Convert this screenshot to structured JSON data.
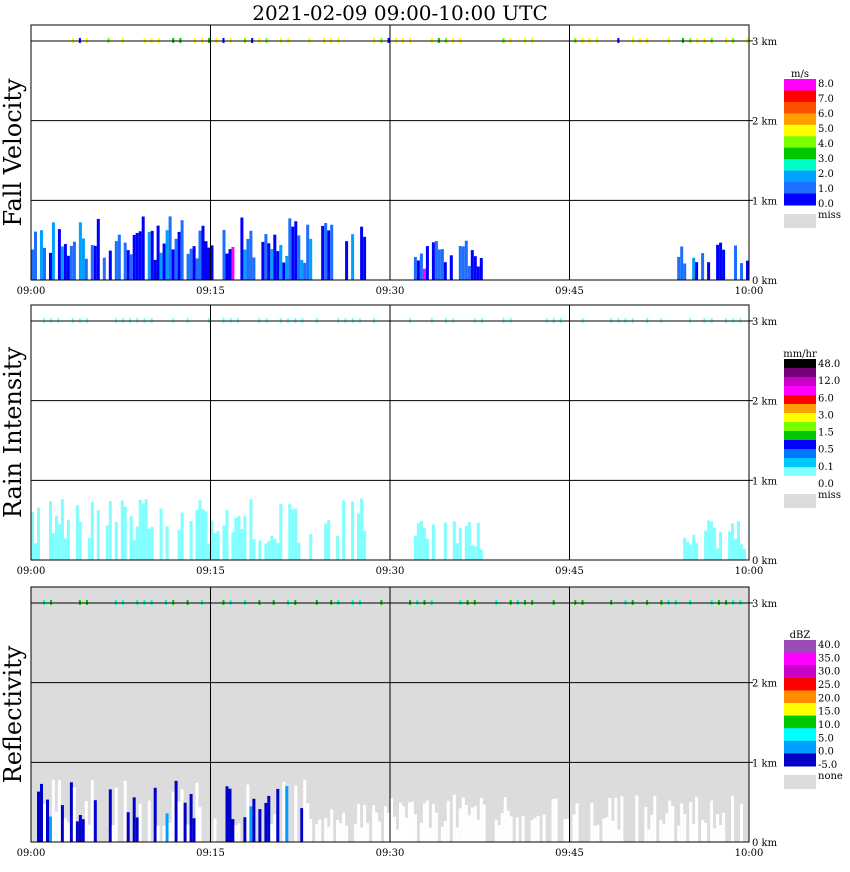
{
  "title": "2021-02-09   09:00-10:00 UTC",
  "x_ticks": [
    "09:00",
    "09:15",
    "09:30",
    "09:45",
    "10:00"
  ],
  "height_ticks": [
    "1 km",
    "2 km",
    "3 km"
  ],
  "bottom_height_tick": "0 km",
  "panels": [
    {
      "id": "fall-velocity",
      "ylabel": "Fall Velocity",
      "unit": "m/s",
      "background": "#ffffff",
      "colorbar": {
        "colors": [
          "#0000ff",
          "#1e6eff",
          "#00a0ff",
          "#00ffc8",
          "#00c800",
          "#78ff00",
          "#ffff00",
          "#ffa000",
          "#ff5000",
          "#ff0000",
          "#ff00ff"
        ],
        "labels": [
          "8.0",
          "7.0",
          "6.0",
          "5.0",
          "4.0",
          "3.0",
          "2.0",
          "1.0",
          "0.0"
        ],
        "miss_label": "miss",
        "miss_color": "#dcdcdc"
      }
    },
    {
      "id": "rain-intensity",
      "ylabel": "Rain Intensity",
      "unit": "mm/hr",
      "background": "#ffffff",
      "colorbar": {
        "colors": [
          "#ffffff",
          "#7fffff",
          "#00c8ff",
          "#0078ff",
          "#0000ff",
          "#00c800",
          "#78ff00",
          "#ffff00",
          "#ffa000",
          "#ff0000",
          "#ff00ff",
          "#c800c8",
          "#780078",
          "#000000"
        ],
        "labels": [
          "48.0",
          "12.0",
          "6.0",
          "3.0",
          "1.5",
          "0.5",
          "0.1",
          "0.0"
        ],
        "miss_label": "miss",
        "miss_color": "#dcdcdc"
      }
    },
    {
      "id": "reflectivity",
      "ylabel": "Reflectivity",
      "unit": "dBZ",
      "background": "#dcdcdc",
      "colorbar": {
        "colors": [
          "#0000c8",
          "#00a0ff",
          "#00ffff",
          "#00c800",
          "#ffff00",
          "#ff8c00",
          "#ff0000",
          "#c800c8",
          "#ff00ff",
          "#9b4bb4"
        ],
        "labels": [
          "40.0",
          "35.0",
          "30.0",
          "25.0",
          "20.0",
          "15.0",
          "10.0",
          "5.0",
          "0.0",
          "-5.0"
        ],
        "miss_label": "none",
        "miss_color": "#dcdcdc"
      }
    }
  ],
  "chart_data": {
    "type": "heatmap",
    "x_range": [
      "09:00",
      "10:00"
    ],
    "y_range_km": [
      0,
      3.2
    ],
    "xlabel": "",
    "ylabel_units": "km",
    "panels": [
      {
        "name": "Fall Velocity",
        "unit": "m/s",
        "echo_segments": [
          {
            "start": "09:00",
            "end": "09:28",
            "top_km": 0.8,
            "value_range": [
              0.0,
              2.0
            ]
          },
          {
            "start": "09:32",
            "end": "09:38",
            "top_km": 0.5,
            "value_range": [
              0.0,
              2.0
            ]
          },
          {
            "start": "09:54",
            "end": "10:00",
            "top_km": 0.5,
            "value_range": [
              1.0,
              2.0
            ]
          }
        ],
        "layer_3km": {
          "height_km": 3.0,
          "value_range": [
            3.0,
            5.0
          ]
        }
      },
      {
        "name": "Rain Intensity",
        "unit": "mm/hr",
        "echo_segments": [
          {
            "start": "09:00",
            "end": "09:28",
            "top_km": 0.8,
            "value_range": [
              0.0,
              0.1
            ]
          },
          {
            "start": "09:32",
            "end": "09:38",
            "top_km": 0.5,
            "value_range": [
              0.0,
              0.1
            ]
          },
          {
            "start": "09:54",
            "end": "10:00",
            "top_km": 0.5,
            "value_range": [
              0.0,
              0.1
            ]
          }
        ],
        "layer_3km": {
          "height_km": 3.0,
          "value_range": [
            0.0,
            0.1
          ]
        }
      },
      {
        "name": "Reflectivity",
        "unit": "dBZ",
        "echo_segments": [
          {
            "start": "09:00",
            "end": "09:23",
            "top_km": 0.8,
            "value_range": [
              -5.0,
              10.0
            ]
          },
          {
            "start": "09:23",
            "end": "10:00",
            "top_km": 0.6,
            "value_range": [
              -5.0,
              0.0
            ]
          }
        ],
        "layer_3km": {
          "height_km": 3.0,
          "value_range": [
            10.0,
            20.0
          ]
        }
      }
    ]
  }
}
